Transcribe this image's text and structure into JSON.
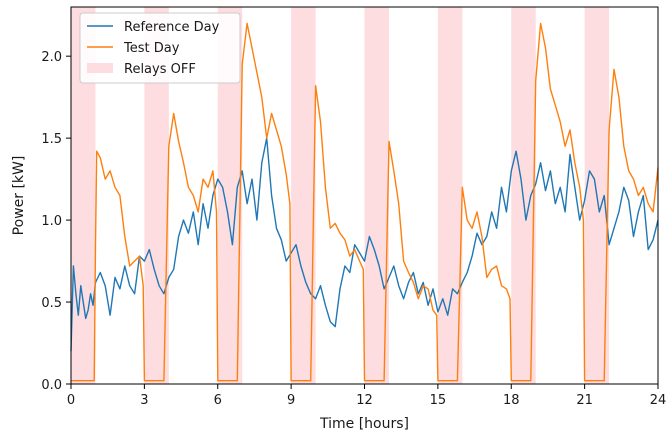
{
  "chart_data": {
    "type": "line",
    "xlabel": "Time [hours]",
    "ylabel": "Power [kW]",
    "xlim": [
      0,
      24
    ],
    "ylim": [
      0,
      2.3
    ],
    "xticks": [
      0,
      3,
      6,
      9,
      12,
      15,
      18,
      21,
      24
    ],
    "yticks": [
      0.0,
      0.5,
      1.0,
      1.5,
      2.0
    ],
    "xtick_labels": [
      "0",
      "3",
      "6",
      "9",
      "12",
      "15",
      "18",
      "21",
      "24"
    ],
    "ytick_labels": [
      "0.0",
      "0.5",
      "1.0",
      "1.5",
      "2.0"
    ],
    "grid": false,
    "legend_position": "upper-left",
    "series": [
      {
        "name": "Reference Day",
        "color": "#1f77b4",
        "x": [
          0.0,
          0.1,
          0.2,
          0.3,
          0.4,
          0.5,
          0.6,
          0.7,
          0.8,
          0.9,
          1.0,
          1.2,
          1.4,
          1.6,
          1.8,
          2.0,
          2.2,
          2.4,
          2.6,
          2.8,
          3.0,
          3.2,
          3.4,
          3.6,
          3.8,
          4.0,
          4.2,
          4.4,
          4.6,
          4.8,
          5.0,
          5.2,
          5.4,
          5.6,
          5.8,
          6.0,
          6.2,
          6.4,
          6.6,
          6.8,
          7.0,
          7.2,
          7.4,
          7.6,
          7.8,
          8.0,
          8.2,
          8.4,
          8.6,
          8.8,
          9.0,
          9.2,
          9.4,
          9.6,
          9.8,
          10.0,
          10.2,
          10.4,
          10.6,
          10.8,
          11.0,
          11.2,
          11.4,
          11.6,
          11.8,
          12.0,
          12.2,
          12.4,
          12.6,
          12.8,
          13.0,
          13.2,
          13.4,
          13.6,
          13.8,
          14.0,
          14.2,
          14.4,
          14.6,
          14.8,
          15.0,
          15.2,
          15.4,
          15.6,
          15.8,
          16.0,
          16.2,
          16.4,
          16.6,
          16.8,
          17.0,
          17.2,
          17.4,
          17.6,
          17.8,
          18.0,
          18.2,
          18.4,
          18.6,
          18.8,
          19.0,
          19.2,
          19.4,
          19.6,
          19.8,
          20.0,
          20.2,
          20.4,
          20.6,
          20.8,
          21.0,
          21.2,
          21.4,
          21.6,
          21.8,
          22.0,
          22.2,
          22.4,
          22.6,
          22.8,
          23.0,
          23.2,
          23.4,
          23.6,
          23.8,
          24.0
        ],
        "y": [
          0.2,
          0.72,
          0.55,
          0.42,
          0.6,
          0.5,
          0.4,
          0.45,
          0.55,
          0.48,
          0.62,
          0.68,
          0.6,
          0.42,
          0.65,
          0.58,
          0.72,
          0.6,
          0.55,
          0.78,
          0.75,
          0.82,
          0.7,
          0.6,
          0.55,
          0.65,
          0.7,
          0.9,
          1.0,
          0.92,
          1.05,
          0.85,
          1.1,
          0.95,
          1.15,
          1.25,
          1.2,
          1.05,
          0.85,
          1.2,
          1.3,
          1.1,
          1.25,
          1.0,
          1.35,
          1.5,
          1.15,
          0.95,
          0.88,
          0.75,
          0.8,
          0.85,
          0.72,
          0.62,
          0.55,
          0.52,
          0.6,
          0.48,
          0.38,
          0.35,
          0.58,
          0.72,
          0.68,
          0.85,
          0.8,
          0.75,
          0.9,
          0.82,
          0.72,
          0.58,
          0.65,
          0.72,
          0.6,
          0.52,
          0.62,
          0.68,
          0.55,
          0.62,
          0.48,
          0.58,
          0.44,
          0.52,
          0.42,
          0.58,
          0.55,
          0.62,
          0.68,
          0.78,
          0.92,
          0.85,
          0.9,
          1.05,
          0.95,
          1.2,
          1.05,
          1.3,
          1.42,
          1.25,
          1.0,
          1.15,
          1.22,
          1.35,
          1.18,
          1.3,
          1.1,
          1.2,
          1.05,
          1.4,
          1.2,
          1.0,
          1.12,
          1.3,
          1.25,
          1.05,
          1.15,
          0.85,
          0.95,
          1.05,
          1.2,
          1.12,
          0.9,
          1.05,
          1.15,
          0.82,
          0.88,
          1.0
        ]
      },
      {
        "name": "Test Day",
        "color": "#ff7f0e",
        "x": [
          0.0,
          0.95,
          1.0,
          1.05,
          1.2,
          1.4,
          1.6,
          1.8,
          2.0,
          2.2,
          2.4,
          2.6,
          2.8,
          2.95,
          3.0,
          3.05,
          3.2,
          3.4,
          3.6,
          3.8,
          4.0,
          4.2,
          4.4,
          4.6,
          4.8,
          5.0,
          5.2,
          5.4,
          5.6,
          5.8,
          5.95,
          6.0,
          6.05,
          6.2,
          6.4,
          6.6,
          6.8,
          7.0,
          7.2,
          7.4,
          7.6,
          7.8,
          8.0,
          8.2,
          8.4,
          8.6,
          8.8,
          8.95,
          9.0,
          9.05,
          9.2,
          9.4,
          9.6,
          9.8,
          10.0,
          10.2,
          10.4,
          10.6,
          10.8,
          11.0,
          11.2,
          11.4,
          11.6,
          11.8,
          11.95,
          12.0,
          12.05,
          12.2,
          12.4,
          12.6,
          12.8,
          13.0,
          13.2,
          13.4,
          13.6,
          13.8,
          14.0,
          14.2,
          14.4,
          14.6,
          14.8,
          14.95,
          15.0,
          15.05,
          15.2,
          15.4,
          15.6,
          15.8,
          16.0,
          16.2,
          16.4,
          16.6,
          16.8,
          17.0,
          17.2,
          17.4,
          17.6,
          17.8,
          17.95,
          18.0,
          18.05,
          18.2,
          18.4,
          18.6,
          18.8,
          19.0,
          19.2,
          19.4,
          19.6,
          19.8,
          20.0,
          20.2,
          20.4,
          20.6,
          20.8,
          20.95,
          21.0,
          21.05,
          21.2,
          21.4,
          21.6,
          21.8,
          22.0,
          22.2,
          22.4,
          22.6,
          22.8,
          23.0,
          23.2,
          23.4,
          23.6,
          23.8,
          24.0
        ],
        "y": [
          0.02,
          0.02,
          0.85,
          1.42,
          1.38,
          1.25,
          1.3,
          1.2,
          1.15,
          0.9,
          0.72,
          0.75,
          0.78,
          0.6,
          0.02,
          0.02,
          0.02,
          0.02,
          0.02,
          0.02,
          1.45,
          1.65,
          1.48,
          1.35,
          1.2,
          1.15,
          1.05,
          1.25,
          1.2,
          1.3,
          1.05,
          0.02,
          0.02,
          0.02,
          0.02,
          0.02,
          0.02,
          1.95,
          2.2,
          2.05,
          1.9,
          1.75,
          1.5,
          1.65,
          1.55,
          1.45,
          1.28,
          1.1,
          0.02,
          0.02,
          0.02,
          0.02,
          0.02,
          0.02,
          1.82,
          1.6,
          1.2,
          0.95,
          0.98,
          0.92,
          0.88,
          0.78,
          0.82,
          0.75,
          0.7,
          0.02,
          0.02,
          0.02,
          0.02,
          0.02,
          0.02,
          1.48,
          1.3,
          1.1,
          0.75,
          0.68,
          0.62,
          0.52,
          0.6,
          0.58,
          0.45,
          0.42,
          0.02,
          0.02,
          0.02,
          0.02,
          0.02,
          0.02,
          1.2,
          1.0,
          0.95,
          1.05,
          0.9,
          0.65,
          0.7,
          0.72,
          0.6,
          0.58,
          0.52,
          0.02,
          0.02,
          0.02,
          0.02,
          0.02,
          0.02,
          1.85,
          2.2,
          2.05,
          1.8,
          1.7,
          1.6,
          1.45,
          1.55,
          1.35,
          1.2,
          1.0,
          0.02,
          0.02,
          0.02,
          0.02,
          0.02,
          0.02,
          1.55,
          1.92,
          1.75,
          1.45,
          1.3,
          1.25,
          1.15,
          1.2,
          1.1,
          1.05,
          1.32
        ]
      }
    ],
    "shaded_regions": {
      "name": "Relays OFF",
      "color": "#fddde0",
      "intervals": [
        [
          0,
          1
        ],
        [
          3,
          4
        ],
        [
          6,
          7
        ],
        [
          9,
          10
        ],
        [
          12,
          13
        ],
        [
          15,
          16
        ],
        [
          18,
          19
        ],
        [
          21,
          22
        ]
      ]
    }
  }
}
